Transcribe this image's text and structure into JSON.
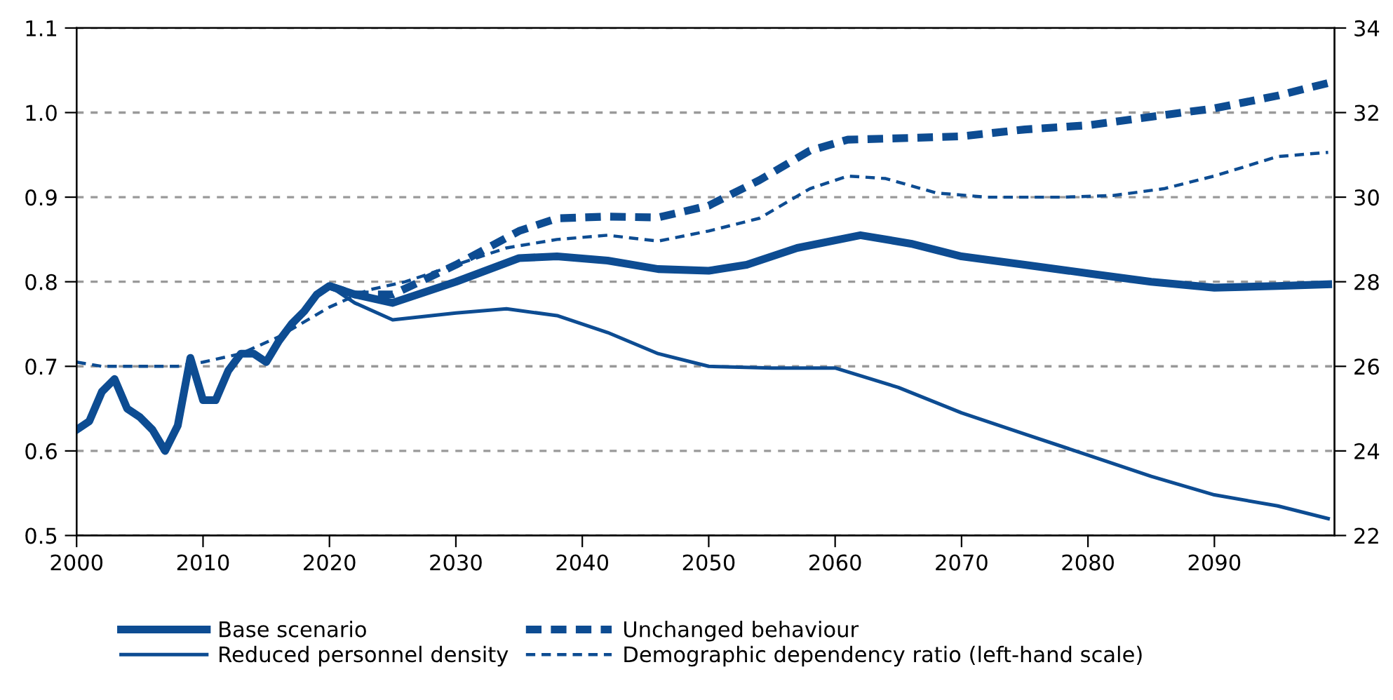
{
  "chart_data": {
    "type": "line",
    "xlim": [
      2000,
      2099.5
    ],
    "xticks": [
      2000,
      2010,
      2020,
      2030,
      2040,
      2050,
      2060,
      2070,
      2080,
      2090
    ],
    "ylim": [
      0.5,
      1.1
    ],
    "yticks": [
      0.5,
      0.6,
      0.7,
      0.8,
      0.9,
      {
        "value": 1.0,
        "label": "1.0"
      },
      1.1
    ],
    "y2lim": [
      22,
      34
    ],
    "y2ticks": [
      22,
      24,
      26,
      28,
      30,
      32,
      34
    ],
    "grid": "y",
    "legend": "bottom",
    "series": [
      {
        "name": "Base scenario",
        "color": "#0d4c92",
        "axis": "y2",
        "line_style": "solid",
        "x": [
          2000,
          2001,
          2002,
          2003,
          2004,
          2005,
          2006,
          2007,
          2008,
          2009,
          2010,
          2011,
          2012,
          2013,
          2014,
          2015,
          2016,
          2017,
          2018,
          2019,
          2020,
          2022,
          2025,
          2030,
          2035,
          2038,
          2042,
          2046,
          2050,
          2053,
          2057,
          2062,
          2066,
          2070,
          2075,
          2080,
          2085,
          2090,
          2095,
          2099
        ],
        "values": [
          24.5,
          24.7,
          25.4,
          25.7,
          25.0,
          24.8,
          24.5,
          24.0,
          24.6,
          26.2,
          25.2,
          25.2,
          25.9,
          26.3,
          26.3,
          26.1,
          26.6,
          27.0,
          27.3,
          27.7,
          27.9,
          27.7,
          27.5,
          28.0,
          28.56,
          28.6,
          28.5,
          28.3,
          28.26,
          28.4,
          28.8,
          29.1,
          28.9,
          28.6,
          28.4,
          28.2,
          28.0,
          27.86,
          27.9,
          27.94
        ]
      },
      {
        "name": "Unchanged behaviour",
        "color": "#0d4c92",
        "axis": "y2",
        "line_style": "dashed",
        "x": [
          2020,
          2022,
          2025,
          2030,
          2035,
          2038,
          2042,
          2046,
          2050,
          2054,
          2058,
          2061,
          2066,
          2070,
          2075,
          2080,
          2085,
          2090,
          2095,
          2099
        ],
        "values": [
          27.9,
          27.7,
          27.7,
          28.4,
          29.2,
          29.5,
          29.54,
          29.52,
          29.8,
          30.4,
          31.1,
          31.36,
          31.4,
          31.44,
          31.6,
          31.7,
          31.9,
          32.1,
          32.4,
          32.7
        ]
      },
      {
        "name": "Reduced personnel density",
        "color": "#0d4c92",
        "axis": "y2",
        "line_style": "solid",
        "x": [
          2020,
          2022,
          2025,
          2030,
          2034,
          2038,
          2042,
          2046,
          2050,
          2055,
          2060,
          2065,
          2070,
          2075,
          2080,
          2085,
          2090,
          2095,
          2099
        ],
        "values": [
          27.9,
          27.5,
          27.1,
          27.26,
          27.36,
          27.2,
          26.8,
          26.3,
          26.0,
          25.96,
          25.96,
          25.5,
          24.9,
          24.4,
          23.9,
          23.4,
          22.96,
          22.7,
          22.4
        ]
      },
      {
        "name": "Demographic dependency ratio (left-hand scale)",
        "color": "#0d4c92",
        "axis": "y",
        "line_style": "dashed",
        "x": [
          2000,
          2002,
          2005,
          2008,
          2010,
          2013,
          2016,
          2020,
          2023,
          2026,
          2030,
          2034,
          2038,
          2042,
          2046,
          2050,
          2054,
          2058,
          2061,
          2064,
          2068,
          2072,
          2078,
          2082,
          2086,
          2090,
          2095,
          2099
        ],
        "values": [
          0.705,
          0.7,
          0.7,
          0.7,
          0.705,
          0.715,
          0.735,
          0.77,
          0.79,
          0.8,
          0.82,
          0.84,
          0.85,
          0.855,
          0.848,
          0.86,
          0.875,
          0.91,
          0.925,
          0.922,
          0.905,
          0.9,
          0.9,
          0.902,
          0.91,
          0.925,
          0.948,
          0.953
        ]
      }
    ]
  }
}
